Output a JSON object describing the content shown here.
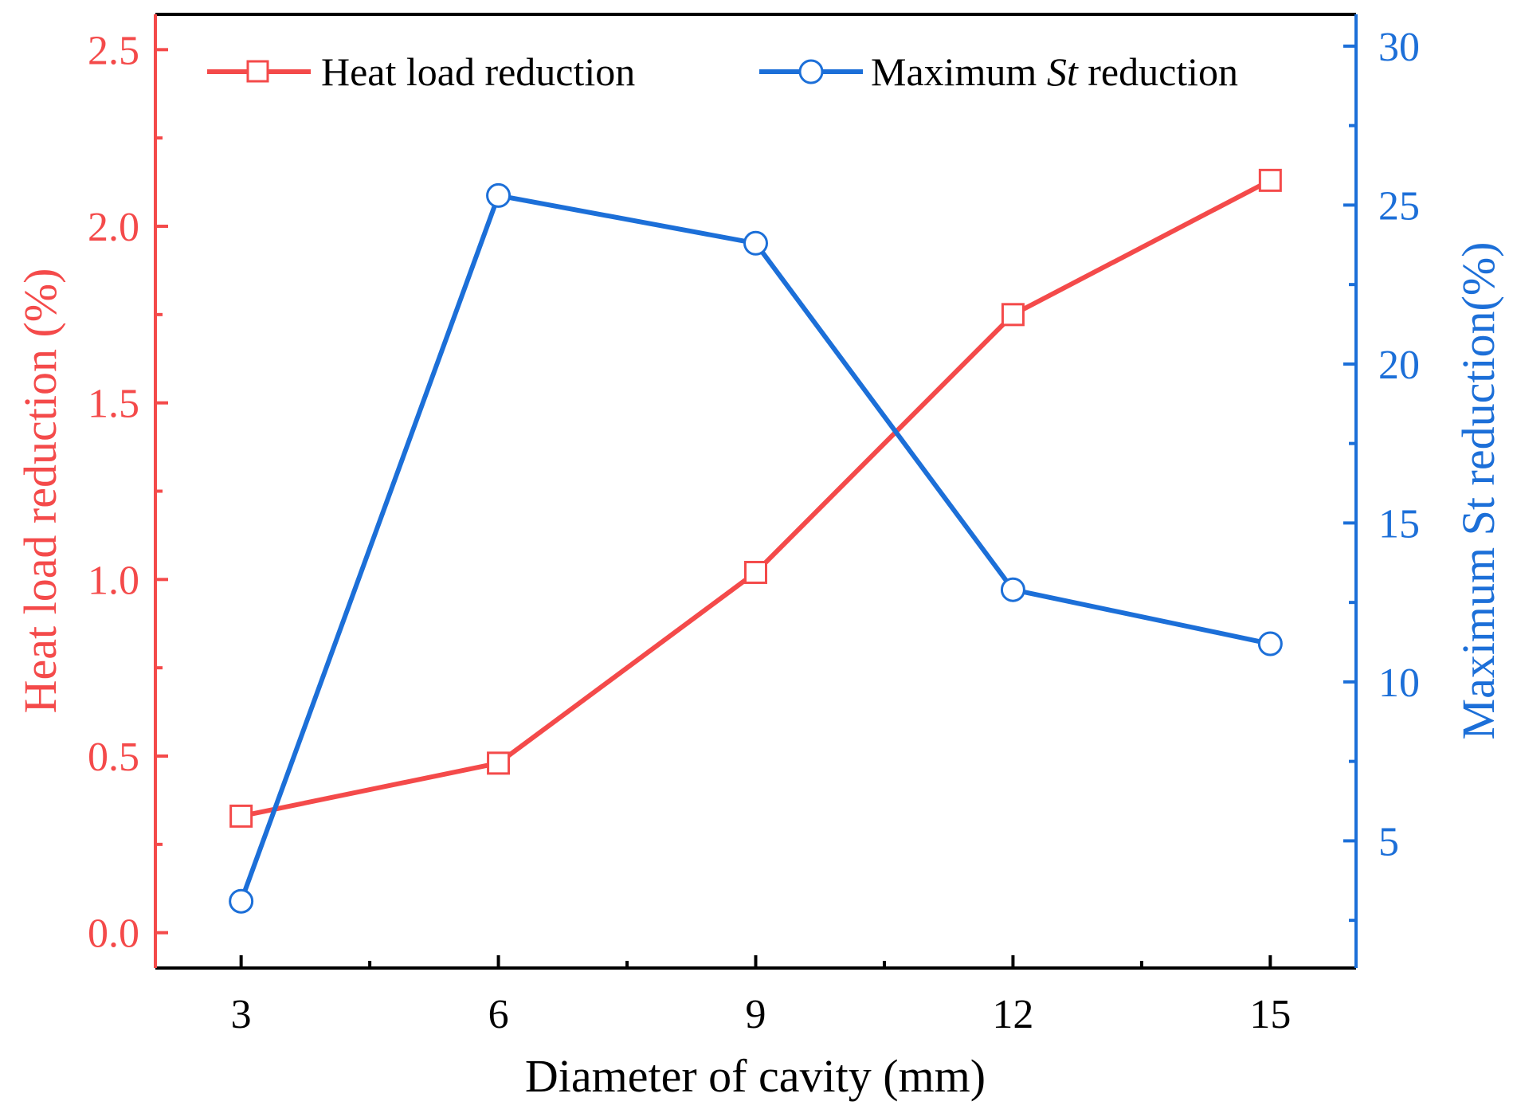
{
  "chart_data": {
    "type": "line",
    "title": "",
    "xlabel": "Diameter of cavity (mm)",
    "x": [
      3,
      6,
      9,
      12,
      15
    ],
    "xticks": [
      "3",
      "6",
      "9",
      "12",
      "15"
    ],
    "xlim": [
      2,
      16
    ],
    "y_left": {
      "label": "Heat load reduction (%)",
      "lim": [
        -0.1,
        2.6
      ],
      "ticks": [
        "0.0",
        "0.5",
        "1.0",
        "1.5",
        "2.0",
        "2.5"
      ],
      "color": "#f44a4a"
    },
    "y_right": {
      "label": "Maximum St reduction(%)",
      "lim": [
        1,
        31
      ],
      "ticks": [
        "5",
        "10",
        "15",
        "20",
        "25",
        "30"
      ],
      "color": "#1c6fd8"
    },
    "series": [
      {
        "name": "Heat load reduction",
        "legend_prefix": "Heat load reduction",
        "legend_italic": "",
        "legend_suffix": "",
        "axis": "left",
        "marker": "square",
        "color": "#f44a4a",
        "values": [
          0.33,
          0.48,
          1.02,
          1.75,
          2.13
        ]
      },
      {
        "name": "Maximum St reduction",
        "legend_prefix": "Maximum ",
        "legend_italic": "St",
        "legend_suffix": " reduction",
        "axis": "right",
        "marker": "circle",
        "color": "#1c6fd8",
        "values": [
          3.1,
          25.3,
          23.8,
          12.9,
          11.2
        ]
      }
    ],
    "legend": "top, inside plot",
    "grid": false
  }
}
